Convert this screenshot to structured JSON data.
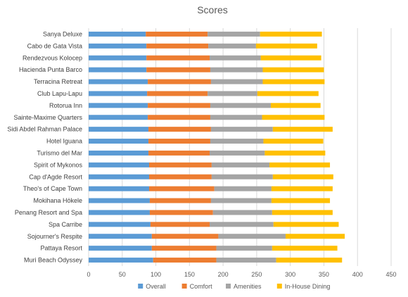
{
  "chart_data": {
    "type": "bar",
    "orientation": "horizontal",
    "stacked": true,
    "title": "Scores",
    "categories": [
      "Sanya Deluxe",
      "Cabo de Gata Vista",
      "Rendezvous Kolocep",
      "Hacienda Punta Barco",
      "Terracina Retreat",
      "Club Lapu-Lapu",
      "Rotorua Inn",
      "Sainte-Maxime Quarters",
      "Sidi Abdel Rahman Palace",
      "Hotel Iguana",
      "Turismo del Mar",
      "Spirit of Mykonos",
      "Cap d'Agde Resort",
      "Theo's of Cape Town",
      "Mokihana Hökele",
      "Penang Resort and Spa",
      "Spa Carribe",
      "Sojourner's Respite",
      "Pattaya Resort",
      "Muri Beach Odyssey"
    ],
    "series": [
      {
        "name": "Overall",
        "color": "#5b9bd5",
        "values": [
          85,
          86,
          86,
          86,
          88,
          87,
          88,
          88,
          89,
          89,
          89,
          90,
          90,
          90,
          91,
          91,
          92,
          94,
          94,
          96
        ]
      },
      {
        "name": "Comfort",
        "color": "#ed7d31",
        "values": [
          92,
          92,
          94,
          95,
          94,
          90,
          93,
          93,
          93,
          92,
          91,
          93,
          93,
          97,
          91,
          94,
          88,
          99,
          96,
          94
        ]
      },
      {
        "name": "Amenities",
        "color": "#a5a5a5",
        "values": [
          78,
          71,
          76,
          78,
          77,
          74,
          90,
          77,
          92,
          79,
          82,
          86,
          91,
          85,
          90,
          88,
          95,
          100,
          83,
          89
        ]
      },
      {
        "name": "In-House Dining",
        "color": "#ffc000",
        "values": [
          92,
          91,
          90,
          91,
          92,
          91,
          74,
          93,
          89,
          89,
          90,
          90,
          90,
          91,
          87,
          90,
          97,
          88,
          97,
          98
        ]
      }
    ],
    "xlim": [
      0,
      450
    ],
    "xticks": [
      0,
      50,
      100,
      150,
      200,
      250,
      300,
      350,
      400,
      450
    ],
    "grid": true,
    "legend": "bottom"
  }
}
